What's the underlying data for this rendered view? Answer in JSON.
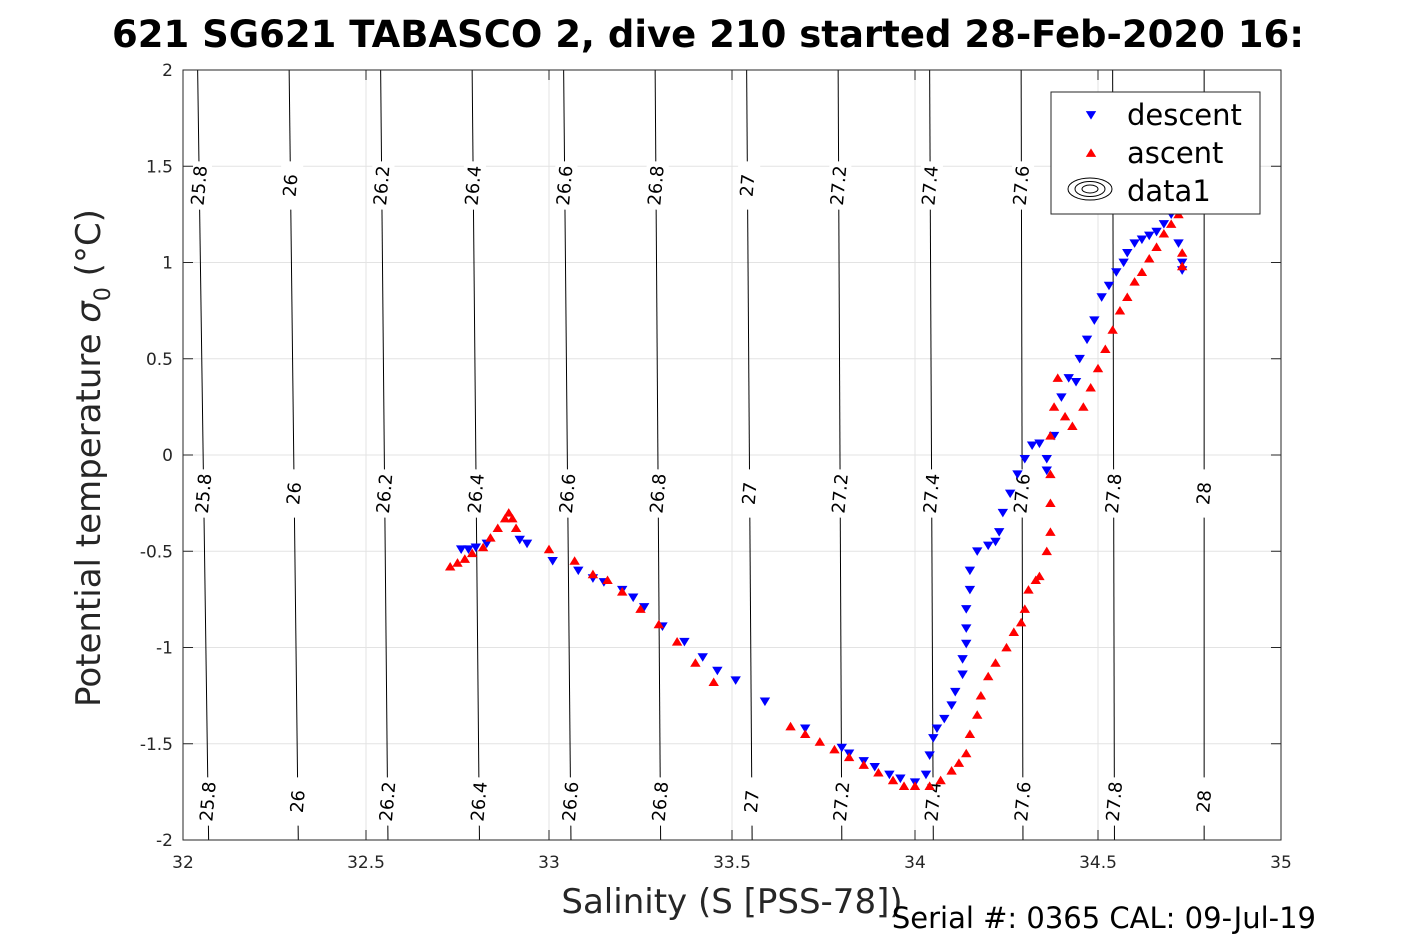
{
  "title": "621 SG621 TABASCO 2, dive 210 started 28-Feb-2020 16:",
  "footer": "Serial #: 0365  CAL: 09-Jul-19",
  "chart_data": {
    "type": "scatter",
    "xlabel": "Salinity (S [PSS-78])",
    "ylabel_main": "Potential temperature ",
    "ylabel_symbol": "σ",
    "ylabel_sub": "0",
    "ylabel_unit": " (°C)",
    "xlim": [
      32,
      35
    ],
    "ylim": [
      -2,
      2
    ],
    "xticks": [
      32,
      32.5,
      33,
      33.5,
      34,
      34.5,
      35
    ],
    "xtick_labels": [
      "32",
      "32.5",
      "33",
      "33.5",
      "34",
      "34.5",
      "35"
    ],
    "yticks": [
      -2,
      -1.5,
      -1,
      -0.5,
      0,
      0.5,
      1,
      1.5,
      2
    ],
    "ytick_labels": [
      "-2",
      "-1.5",
      "-1",
      "-0.5",
      "0",
      "0.5",
      "1",
      "1.5",
      "2"
    ],
    "grid": true,
    "legend_position": "top-right",
    "legend": [
      {
        "name": "descent",
        "marker": "triangle-down",
        "color": "#0000ff"
      },
      {
        "name": "ascent",
        "marker": "triangle-up",
        "color": "#ff0000"
      },
      {
        "name": "data1",
        "marker": "contour",
        "color": "#000000"
      }
    ],
    "contours": [
      {
        "label": "25.8",
        "s_at_tmin": 32.07,
        "s_at_tmax": 32.04
      },
      {
        "label": "26",
        "s_at_tmin": 32.315,
        "s_at_tmax": 32.29
      },
      {
        "label": "26.2",
        "s_at_tmin": 32.56,
        "s_at_tmax": 32.54
      },
      {
        "label": "26.4",
        "s_at_tmin": 32.81,
        "s_at_tmax": 32.79
      },
      {
        "label": "26.6",
        "s_at_tmin": 33.06,
        "s_at_tmax": 33.04
      },
      {
        "label": "26.8",
        "s_at_tmin": 33.305,
        "s_at_tmax": 33.29
      },
      {
        "label": "27",
        "s_at_tmin": 33.555,
        "s_at_tmax": 33.54
      },
      {
        "label": "27.2",
        "s_at_tmin": 33.8,
        "s_at_tmax": 33.79
      },
      {
        "label": "27.4",
        "s_at_tmin": 34.05,
        "s_at_tmax": 34.04
      },
      {
        "label": "27.6",
        "s_at_tmin": 34.295,
        "s_at_tmax": 34.29
      },
      {
        "label": "27.8",
        "s_at_tmin": 34.545,
        "s_at_tmax": 34.54
      },
      {
        "label": "28",
        "s_at_tmin": 34.79,
        "s_at_tmax": 34.79
      }
    ],
    "series": [
      {
        "name": "descent",
        "color": "#0000ff",
        "marker": "triangle-down",
        "points": [
          [
            32.76,
            -0.49
          ],
          [
            32.78,
            -0.49
          ],
          [
            32.8,
            -0.48
          ],
          [
            32.83,
            -0.46
          ],
          [
            32.92,
            -0.44
          ],
          [
            32.94,
            -0.46
          ],
          [
            33.01,
            -0.55
          ],
          [
            33.08,
            -0.6
          ],
          [
            33.12,
            -0.64
          ],
          [
            33.15,
            -0.66
          ],
          [
            33.2,
            -0.7
          ],
          [
            33.23,
            -0.74
          ],
          [
            33.26,
            -0.79
          ],
          [
            33.31,
            -0.89
          ],
          [
            33.37,
            -0.97
          ],
          [
            33.42,
            -1.05
          ],
          [
            33.46,
            -1.12
          ],
          [
            33.51,
            -1.17
          ],
          [
            33.59,
            -1.28
          ],
          [
            33.7,
            -1.42
          ],
          [
            33.8,
            -1.52
          ],
          [
            33.82,
            -1.55
          ],
          [
            33.86,
            -1.59
          ],
          [
            33.89,
            -1.62
          ],
          [
            33.93,
            -1.66
          ],
          [
            33.96,
            -1.68
          ],
          [
            34.0,
            -1.7
          ],
          [
            34.03,
            -1.66
          ],
          [
            34.04,
            -1.56
          ],
          [
            34.05,
            -1.47
          ],
          [
            34.06,
            -1.42
          ],
          [
            34.08,
            -1.37
          ],
          [
            34.1,
            -1.3
          ],
          [
            34.11,
            -1.23
          ],
          [
            34.13,
            -1.14
          ],
          [
            34.13,
            -1.06
          ],
          [
            34.14,
            -0.98
          ],
          [
            34.14,
            -0.9
          ],
          [
            34.14,
            -0.8
          ],
          [
            34.15,
            -0.7
          ],
          [
            34.15,
            -0.6
          ],
          [
            34.17,
            -0.5
          ],
          [
            34.2,
            -0.47
          ],
          [
            34.22,
            -0.45
          ],
          [
            34.23,
            -0.4
          ],
          [
            34.24,
            -0.3
          ],
          [
            34.26,
            -0.2
          ],
          [
            34.28,
            -0.1
          ],
          [
            34.3,
            -0.02
          ],
          [
            34.32,
            0.05
          ],
          [
            34.34,
            0.06
          ],
          [
            34.36,
            -0.02
          ],
          [
            34.36,
            -0.08
          ],
          [
            34.38,
            0.1
          ],
          [
            34.4,
            0.3
          ],
          [
            34.42,
            0.4
          ],
          [
            34.44,
            0.38
          ],
          [
            34.45,
            0.5
          ],
          [
            34.47,
            0.6
          ],
          [
            34.49,
            0.7
          ],
          [
            34.51,
            0.82
          ],
          [
            34.53,
            0.88
          ],
          [
            34.55,
            0.95
          ],
          [
            34.57,
            1.0
          ],
          [
            34.58,
            1.05
          ],
          [
            34.6,
            1.1
          ],
          [
            34.62,
            1.12
          ],
          [
            34.64,
            1.14
          ],
          [
            34.66,
            1.16
          ],
          [
            34.68,
            1.2
          ],
          [
            34.7,
            1.25
          ],
          [
            34.71,
            1.3
          ],
          [
            34.72,
            1.1
          ],
          [
            34.73,
            1.0
          ],
          [
            34.73,
            0.96
          ]
        ]
      },
      {
        "name": "ascent",
        "color": "#ff0000",
        "marker": "triangle-up",
        "points": [
          [
            32.73,
            -0.58
          ],
          [
            32.75,
            -0.56
          ],
          [
            32.77,
            -0.54
          ],
          [
            32.79,
            -0.51
          ],
          [
            32.82,
            -0.48
          ],
          [
            32.84,
            -0.43
          ],
          [
            32.86,
            -0.38
          ],
          [
            32.88,
            -0.33
          ],
          [
            32.89,
            -0.3
          ],
          [
            32.9,
            -0.33
          ],
          [
            32.91,
            -0.38
          ],
          [
            33.0,
            -0.49
          ],
          [
            33.07,
            -0.55
          ],
          [
            33.12,
            -0.62
          ],
          [
            33.16,
            -0.65
          ],
          [
            33.2,
            -0.71
          ],
          [
            33.25,
            -0.8
          ],
          [
            33.3,
            -0.88
          ],
          [
            33.35,
            -0.97
          ],
          [
            33.4,
            -1.08
          ],
          [
            33.45,
            -1.18
          ],
          [
            33.66,
            -1.41
          ],
          [
            33.7,
            -1.45
          ],
          [
            33.74,
            -1.49
          ],
          [
            33.78,
            -1.53
          ],
          [
            33.82,
            -1.57
          ],
          [
            33.86,
            -1.61
          ],
          [
            33.9,
            -1.65
          ],
          [
            33.94,
            -1.69
          ],
          [
            33.97,
            -1.72
          ],
          [
            34.0,
            -1.72
          ],
          [
            34.04,
            -1.72
          ],
          [
            34.07,
            -1.69
          ],
          [
            34.1,
            -1.64
          ],
          [
            34.12,
            -1.6
          ],
          [
            34.14,
            -1.55
          ],
          [
            34.15,
            -1.45
          ],
          [
            34.17,
            -1.35
          ],
          [
            34.18,
            -1.25
          ],
          [
            34.2,
            -1.15
          ],
          [
            34.22,
            -1.08
          ],
          [
            34.25,
            -1.0
          ],
          [
            34.27,
            -0.92
          ],
          [
            34.29,
            -0.87
          ],
          [
            34.3,
            -0.8
          ],
          [
            34.31,
            -0.7
          ],
          [
            34.33,
            -0.65
          ],
          [
            34.34,
            -0.63
          ],
          [
            34.36,
            -0.5
          ],
          [
            34.37,
            -0.4
          ],
          [
            34.37,
            -0.25
          ],
          [
            34.37,
            -0.1
          ],
          [
            34.37,
            0.1
          ],
          [
            34.38,
            0.25
          ],
          [
            34.39,
            0.4
          ],
          [
            34.41,
            0.2
          ],
          [
            34.43,
            0.15
          ],
          [
            34.46,
            0.25
          ],
          [
            34.48,
            0.35
          ],
          [
            34.5,
            0.45
          ],
          [
            34.52,
            0.55
          ],
          [
            34.54,
            0.65
          ],
          [
            34.56,
            0.75
          ],
          [
            34.58,
            0.82
          ],
          [
            34.6,
            0.9
          ],
          [
            34.62,
            0.95
          ],
          [
            34.64,
            1.02
          ],
          [
            34.66,
            1.08
          ],
          [
            34.68,
            1.15
          ],
          [
            34.7,
            1.2
          ],
          [
            34.72,
            1.25
          ],
          [
            34.73,
            1.05
          ],
          [
            34.73,
            0.98
          ]
        ]
      }
    ]
  }
}
